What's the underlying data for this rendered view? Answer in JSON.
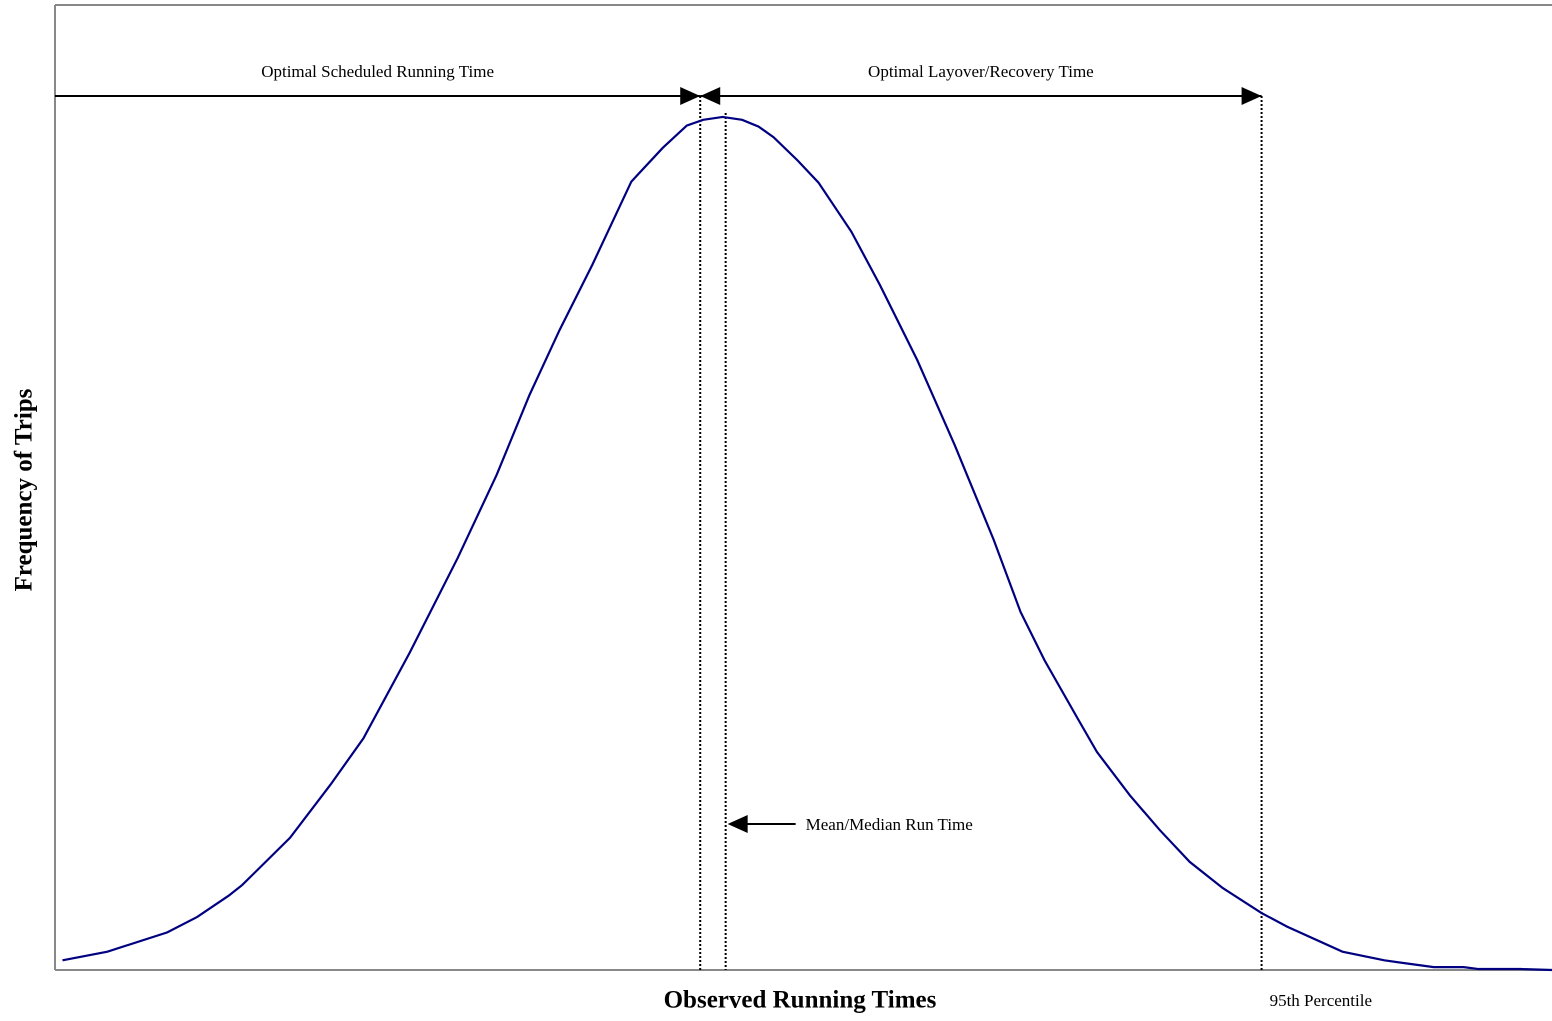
{
  "chart_data": {
    "type": "line",
    "xlabel": "Observed Running Times",
    "ylabel": "Frequency of Trips",
    "xlim": [
      0,
      100
    ],
    "ylim": [
      0,
      100
    ],
    "series": [
      {
        "color": "#000080",
        "x": [
          0.5,
          3.5,
          7.5,
          9.5,
          11.6,
          12.5,
          15.7,
          18.4,
          20.6,
          23.7,
          26.9,
          29.5,
          31.7,
          33.7,
          35.9,
          38.5,
          40.6,
          42.2,
          43.3,
          44.6,
          45.9,
          47.0,
          48.0,
          49.6,
          51.0,
          53.2,
          55.1,
          57.6,
          60.1,
          62.7,
          64.5,
          66.1,
          68.3,
          69.6,
          71.8,
          73.8,
          75.8,
          78.0,
          80.6,
          82.3,
          86.0,
          88.8,
          92.1,
          94.1,
          95.1,
          97.9,
          100
        ],
        "values": [
          1.0,
          1.9,
          3.9,
          5.5,
          7.7,
          8.8,
          13.7,
          19.2,
          24.0,
          32.9,
          42.7,
          51.3,
          59.6,
          66.3,
          73.1,
          81.7,
          85.2,
          87.5,
          88.1,
          88.4,
          88.1,
          87.4,
          86.3,
          83.9,
          81.6,
          76.5,
          71.0,
          63.2,
          54.4,
          44.6,
          37.1,
          32.1,
          26.1,
          22.6,
          18.1,
          14.5,
          11.2,
          8.5,
          5.9,
          4.5,
          1.9,
          1.0,
          0.3,
          0.3,
          0.1,
          0.1,
          0
        ]
      }
    ],
    "reference_lines": [
      {
        "x": 43.1
      },
      {
        "x": 44.8,
        "label": "Mean/Median Run Time"
      },
      {
        "x": 80.6,
        "label": "95th Percentile"
      }
    ],
    "spans": [
      {
        "from": 0,
        "to": 43.1,
        "label": "Optimal Scheduled Running Time"
      },
      {
        "from": 43.1,
        "to": 80.6,
        "label": "Optimal Layover/Recovery Time"
      }
    ]
  }
}
